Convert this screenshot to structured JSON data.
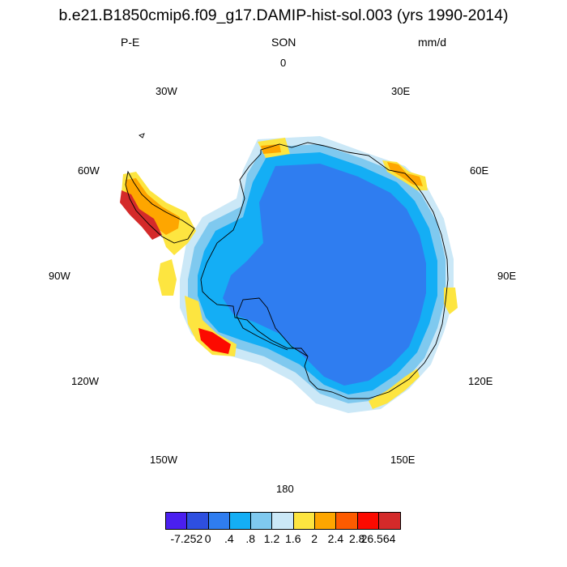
{
  "title": "b.e21.B1850cmip6.f09_g17.DAMIP-hist-sol.003 (yrs 1990-2014)",
  "left_label": "P-E",
  "center_label": "SON",
  "right_label": "mm/d",
  "longitude_labels": {
    "n0": "0",
    "n30e": "30E",
    "n60e": "60E",
    "n90e": "90E",
    "n120e": "120E",
    "n150e": "150E",
    "n180": "180",
    "n150w": "150W",
    "n120w": "120W",
    "n90w": "90W",
    "n60w": "60W",
    "n30w": "30W"
  },
  "colorbar": {
    "colors": [
      "#4a1ff0",
      "#2e4fe0",
      "#2f7df0",
      "#14aef5",
      "#7fc9ef",
      "#cbe8f7",
      "#fde540",
      "#fea600",
      "#fe5b00",
      "#fc0a00",
      "#d42a2a"
    ],
    "labels": [
      "-7.252",
      "0",
      ".4",
      ".8",
      "1.2",
      "1.6",
      "2",
      "2.4",
      "2.8",
      "26.564"
    ]
  },
  "map_colors": {
    "interior": "#2f7df0",
    "ring_mid": "#14aef5",
    "ring_outer": "#7fc9ef",
    "ring_edge": "#cbe8f7",
    "coast_yellow": "#fde540",
    "coast_orange": "#fea600",
    "coast_red": "#fc0a00",
    "coast_dark": "#d42a2a",
    "coastline": "#000000"
  }
}
